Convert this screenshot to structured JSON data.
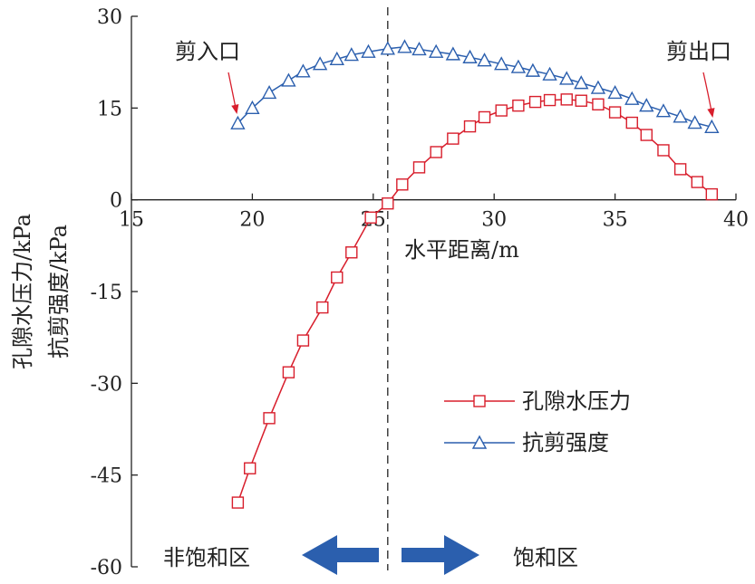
{
  "chart_data": {
    "type": "line",
    "xlabel": "水平距离/m",
    "ylabel": [
      "孔隙水压力/kPa",
      "抗剪强度/kPa"
    ],
    "xlim": [
      15,
      40
    ],
    "ylim": [
      -60,
      30
    ],
    "x_ticks": [
      "15",
      "20",
      "25",
      "30",
      "35",
      "40"
    ],
    "y_ticks": [
      "30",
      "15",
      "0",
      "-15",
      "-30",
      "-45",
      "-60"
    ],
    "divider_x": 25.6,
    "annotations": {
      "inlet": "剪入口",
      "outlet": "剪出口",
      "unsaturated": "非饱和区",
      "saturated": "饱和区"
    },
    "colors": {
      "pore": "#d81e2c",
      "shear": "#2b5fae",
      "arrow": "#2b5fae"
    },
    "legend_position": "lower-right",
    "series": [
      {
        "name": "孔隙水压力",
        "marker": "square",
        "x": [
          19.4,
          19.9,
          20.7,
          21.5,
          22.1,
          22.9,
          23.5,
          24.1,
          24.9,
          25.6,
          26.2,
          26.9,
          27.6,
          28.3,
          29.0,
          29.6,
          30.3,
          31.0,
          31.7,
          32.3,
          33.0,
          33.6,
          34.3,
          35.0,
          35.7,
          36.3,
          37.0,
          37.7,
          38.4,
          39.0
        ],
        "values": [
          -49.5,
          -43.9,
          -35.7,
          -28.2,
          -23.0,
          -17.6,
          -12.7,
          -8.6,
          -2.9,
          -0.6,
          2.5,
          5.3,
          7.8,
          10.0,
          12.0,
          13.5,
          14.6,
          15.4,
          16.0,
          16.3,
          16.4,
          16.2,
          15.6,
          14.3,
          12.6,
          10.6,
          8.1,
          5.0,
          2.9,
          0.9
        ]
      },
      {
        "name": "抗剪强度",
        "marker": "triangle",
        "x": [
          19.4,
          20.0,
          20.7,
          21.5,
          22.1,
          22.8,
          23.5,
          24.1,
          24.8,
          25.6,
          26.3,
          26.9,
          27.6,
          28.3,
          29.0,
          29.6,
          30.3,
          31.0,
          31.6,
          32.3,
          33.0,
          33.6,
          34.3,
          35.0,
          35.7,
          36.3,
          37.0,
          37.7,
          38.3,
          39.0
        ],
        "values": [
          12.5,
          15.0,
          17.5,
          19.5,
          21.0,
          22.2,
          23.0,
          23.7,
          24.2,
          24.7,
          25.0,
          24.6,
          24.2,
          23.8,
          23.3,
          22.8,
          22.2,
          21.7,
          21.1,
          20.5,
          19.8,
          19.1,
          18.3,
          17.5,
          16.5,
          15.4,
          14.5,
          13.6,
          12.6,
          11.9
        ]
      }
    ]
  }
}
